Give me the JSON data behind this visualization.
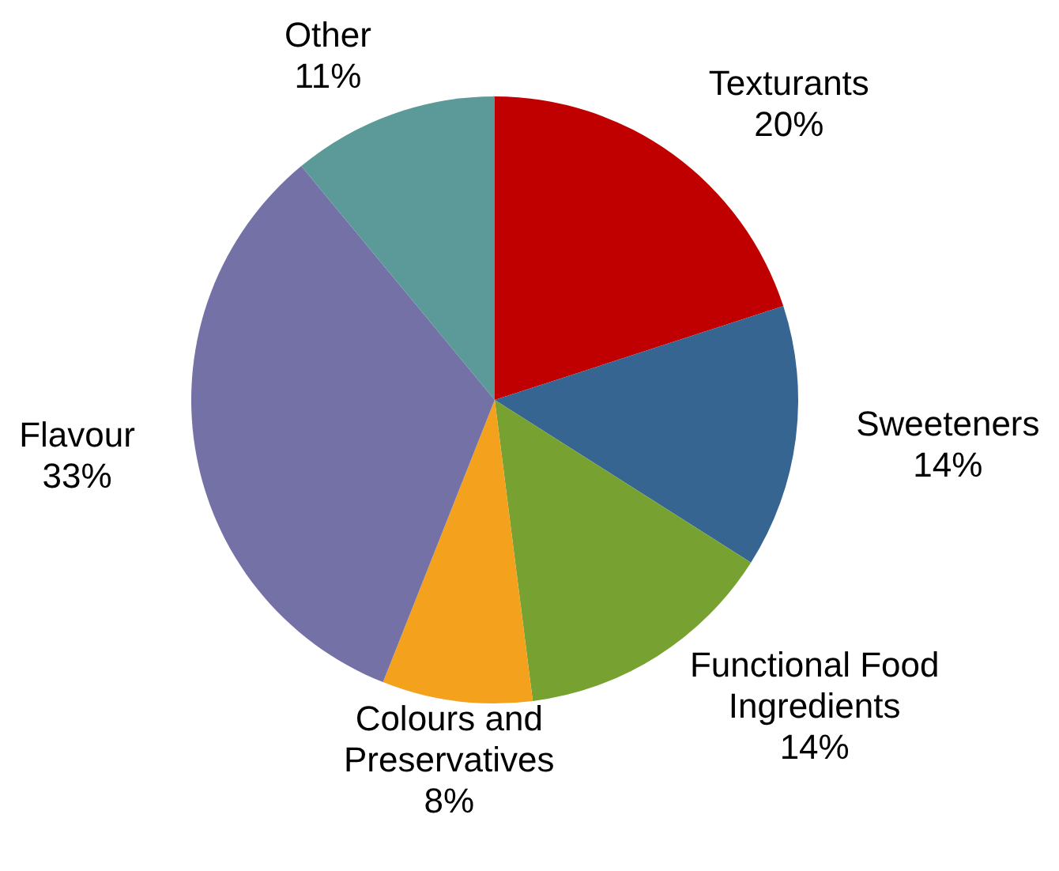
{
  "chart_data": {
    "type": "pie",
    "categories": [
      "Texturants",
      "Sweeteners",
      "Functional Food Ingredients",
      "Colours and Preservatives",
      "Flavour",
      "Other"
    ],
    "values": [
      20,
      14,
      14,
      8,
      33,
      11
    ],
    "value_labels": [
      "20%",
      "14%",
      "14%",
      "8%",
      "33%",
      "11%"
    ],
    "colors": [
      "#c00000",
      "#376592",
      "#77a232",
      "#f4a11e",
      "#7471a6",
      "#5b9a98"
    ]
  }
}
